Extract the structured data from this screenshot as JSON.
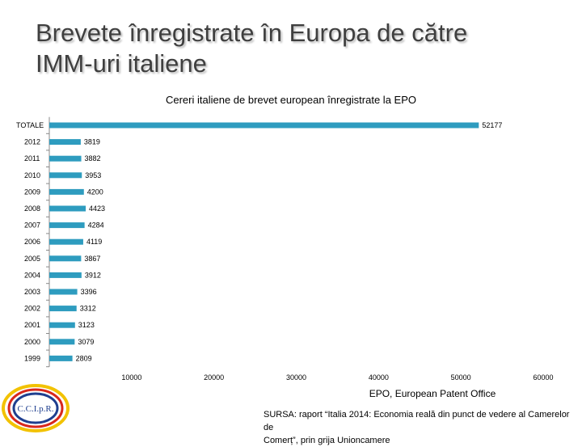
{
  "slide": {
    "title_line1": "Brevete înregistrate în Europa de către",
    "title_line2": "IMM-uri italiene",
    "source_line1": "SURSA: raport “Italia 2014: Economia reală din punct de vedere al Camerelor de",
    "source_line2": "Comerț”, prin grija Unioncamere",
    "logo_text": "C.C.I.p.R.",
    "colors": {
      "bar": "#2e9cbf",
      "title": "#3f3f3f"
    }
  },
  "chart_data": {
    "type": "bar",
    "orientation": "horizontal",
    "title": "Cereri italiene de brevet european înregistrate la EPO",
    "xlabel": "EPO, European Patent Office",
    "ylabel": "",
    "xlim": [
      0,
      60000
    ],
    "xticks": [
      10000,
      20000,
      30000,
      40000,
      50000,
      60000
    ],
    "grid": false,
    "legend": "none",
    "categories": [
      "TOTALE",
      "2012",
      "2011",
      "2010",
      "2009",
      "2008",
      "2007",
      "2006",
      "2005",
      "2004",
      "2003",
      "2002",
      "2001",
      "2000",
      "1999"
    ],
    "values": [
      52177,
      3819,
      3882,
      3953,
      4200,
      4423,
      4284,
      4119,
      3867,
      3912,
      3396,
      3312,
      3123,
      3079,
      2809
    ],
    "value_labels": [
      "52177",
      "3819",
      "3882",
      "3953",
      "4200",
      "4423",
      "4284",
      "4119",
      "3867",
      "3912",
      "3396",
      "3312",
      "3123",
      "3079",
      "2809"
    ]
  }
}
